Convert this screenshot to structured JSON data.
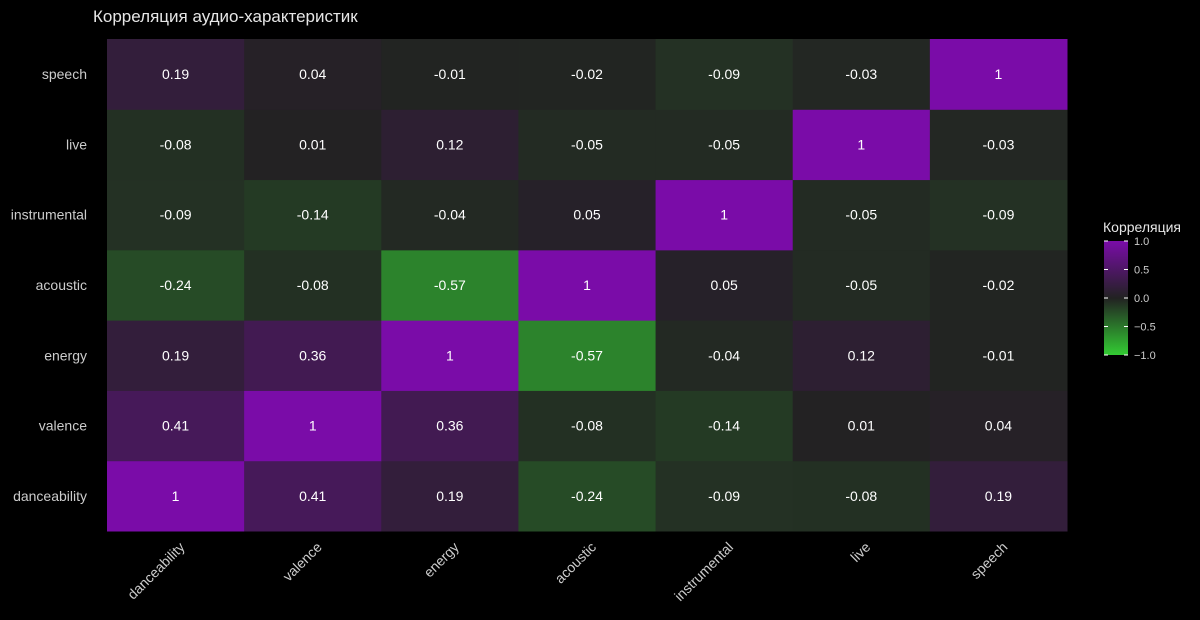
{
  "chart_data": {
    "type": "heatmap",
    "title": "Корреляция аудио-характеристик",
    "x_categories": [
      "danceability",
      "valence",
      "energy",
      "acoustic",
      "instrumental",
      "live",
      "speech"
    ],
    "y_categories": [
      "danceability",
      "valence",
      "energy",
      "acoustic",
      "instrumental",
      "live",
      "speech"
    ],
    "values": [
      [
        "1",
        "0.41",
        "0.19",
        "-0.24",
        "-0.09",
        "-0.08",
        "0.19"
      ],
      [
        "0.41",
        "1",
        "0.36",
        "-0.08",
        "-0.14",
        "0.01",
        "0.04"
      ],
      [
        "0.19",
        "0.36",
        "1",
        "-0.57",
        "-0.04",
        "0.12",
        "-0.01"
      ],
      [
        "-0.24",
        "-0.08",
        "-0.57",
        "1",
        "0.05",
        "-0.05",
        "-0.02"
      ],
      [
        "-0.09",
        "-0.14",
        "-0.04",
        "0.05",
        "1",
        "-0.05",
        "-0.09"
      ],
      [
        "-0.08",
        "0.01",
        "0.12",
        "-0.05",
        "-0.05",
        "1",
        "-0.03"
      ],
      [
        "0.19",
        "0.04",
        "-0.01",
        "-0.02",
        "-0.09",
        "-0.03",
        "1"
      ]
    ],
    "value_range": [
      -1,
      1
    ],
    "grid": false,
    "legend": {
      "title": "Корреляция",
      "position": "right",
      "ticks": [
        1.0,
        0.5,
        0.0,
        -0.5,
        -1.0
      ],
      "tick_labels": [
        "1.0",
        "0.5",
        "0.0",
        "−0.5",
        "−1.0"
      ]
    },
    "colors": {
      "background": "#000000",
      "low": "#33cc33",
      "mid": "#222222",
      "high": "#7a0ca8",
      "text": "#ffffff",
      "axis_text": "#cccccc"
    }
  }
}
